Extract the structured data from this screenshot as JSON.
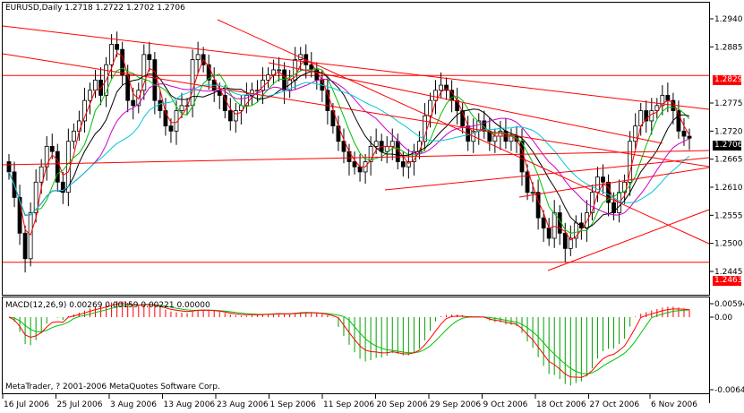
{
  "window": {
    "symbol_header": "EURUSD,Daily  1.2718 1.2722 1.2702 1.2706",
    "copyright": "MetaTrader, ? 2001-2006 MetaQuotes Software Corp."
  },
  "macd_panel": {
    "title": "MACD(12,26,9) 0.00269 0.00159 0.00221 0.00000",
    "ticks": [
      "0.00594",
      "0.00",
      "-0.0064"
    ]
  },
  "price_axis": {
    "ticks": [
      "1.2940",
      "1.2885",
      "1.2775",
      "1.2720",
      "1.2665",
      "1.2610",
      "1.2555",
      "1.2500",
      "1.2445"
    ],
    "hlines": [
      {
        "value": "1.2829",
        "color": "#ff0000"
      },
      {
        "value": "1.2463",
        "color": "#ff0000"
      }
    ],
    "current_price": "1.2706"
  },
  "time_axis": {
    "labels": [
      "16 Jul 2006",
      "25 Jul 2006",
      "3 Aug 2006",
      "13 Aug 2006",
      "23 Aug 2006",
      "1 Sep 2006",
      "11 Sep 2006",
      "20 Sep 2006",
      "29 Sep 2006",
      "9 Oct 2006",
      "18 Oct 2006",
      "27 Oct 2006",
      "6 Nov 2006"
    ]
  },
  "colors": {
    "up_candle": "#ffffff",
    "down_candle": "#000000",
    "trendline": "#ff0000",
    "ma_red": "#ff0000",
    "ma_green": "#00c000",
    "ma_black": "#000000",
    "ma_magenta": "#cc00cc",
    "ma_cyan": "#00c8d8",
    "macd_hist_pos": "#ff0000",
    "macd_hist_neg": "#00a000",
    "macd_signal": "#00c000",
    "macd_line": "#ff0000"
  }
}
